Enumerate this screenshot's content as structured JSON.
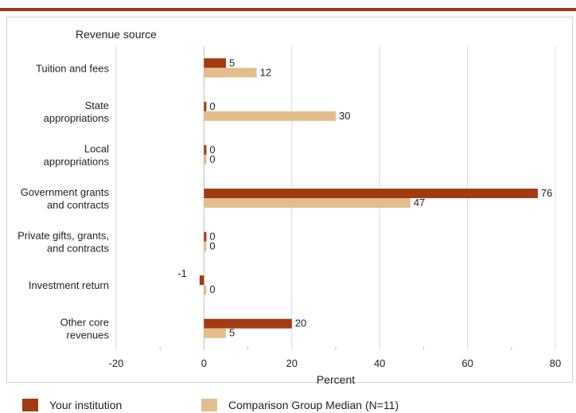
{
  "chart_data": {
    "type": "bar",
    "orientation": "horizontal",
    "category_axis_title": "Revenue source",
    "xlabel": "Percent",
    "xlim": [
      -20,
      80
    ],
    "xticks": [
      -20,
      0,
      20,
      40,
      60,
      80
    ],
    "xtick_labels": [
      "-20",
      "0",
      "20",
      "40",
      "60",
      "80"
    ],
    "grid": true,
    "legend_position": "bottom",
    "categories": [
      [
        "Tuition and fees"
      ],
      [
        "State",
        "appropriations"
      ],
      [
        "Local",
        "appropriations"
      ],
      [
        "Government grants",
        "and contracts"
      ],
      [
        "Private gifts, grants,",
        "and contracts"
      ],
      [
        "Investment return"
      ],
      [
        "Other core",
        "revenues"
      ]
    ],
    "series": [
      {
        "name": "Your institution",
        "color": "#a23a12",
        "values": [
          5,
          0,
          0,
          76,
          0,
          -1,
          20
        ],
        "labels": [
          "5",
          "0",
          "0",
          "76",
          "0",
          "-1",
          "20"
        ]
      },
      {
        "name": "Comparison Group Median (N=11)",
        "color": "#e3bd8c",
        "values": [
          12,
          30,
          0,
          47,
          0,
          0,
          5
        ],
        "labels": [
          "12",
          "30",
          "0",
          "47",
          "0",
          "0",
          "5"
        ]
      }
    ]
  }
}
